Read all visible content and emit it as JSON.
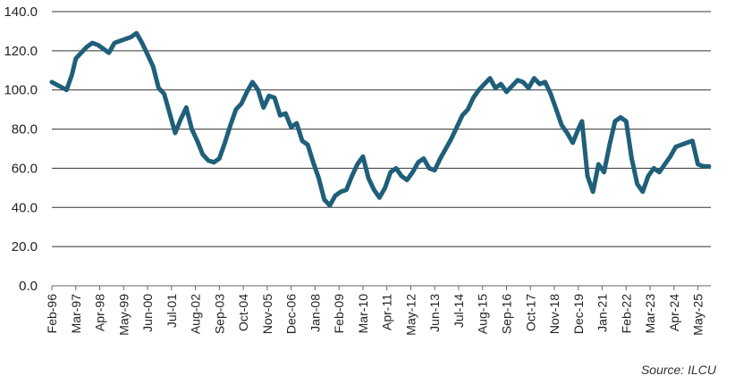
{
  "source_note": "Source: ILCU",
  "chart_data": {
    "type": "line",
    "title": "",
    "xlabel": "",
    "ylabel": "",
    "ylim": [
      0,
      140
    ],
    "yticks": [
      "0.0",
      "20.0",
      "40.0",
      "60.0",
      "80.0",
      "100.0",
      "120.0",
      "140.0"
    ],
    "xticks": [
      "Feb-96",
      "Mar-97",
      "Apr-98",
      "May-99",
      "Jun-00",
      "Jul-01",
      "Aug-02",
      "Sep-03",
      "Oct-04",
      "Nov-05",
      "Dec-06",
      "Jan-08",
      "Feb-09",
      "Mar-10",
      "Apr-11",
      "May-12",
      "Jun-13",
      "Jul-14",
      "Aug-15",
      "Sep-16",
      "Oct-17",
      "Nov-18",
      "Dec-19",
      "Jan-21",
      "Feb-22",
      "Mar-23",
      "Apr-24",
      "May-25"
    ],
    "grid": "horizontal",
    "line_color": "#1f5f7a",
    "series": [
      {
        "x": [
          "1996-02",
          "1996-06",
          "1996-10",
          "1997-01",
          "1997-03",
          "1997-06",
          "1997-09",
          "1997-12",
          "1998-03",
          "1998-06",
          "1998-09",
          "1998-12",
          "1999-03",
          "1999-06",
          "1999-09",
          "1999-12",
          "2000-03",
          "2000-06",
          "2000-09",
          "2000-12",
          "2001-03",
          "2001-06",
          "2001-09",
          "2001-12",
          "2002-03",
          "2002-06",
          "2002-09",
          "2002-12",
          "2003-03",
          "2003-06",
          "2003-09",
          "2003-12",
          "2004-03",
          "2004-06",
          "2004-09",
          "2004-12",
          "2005-03",
          "2005-06",
          "2005-09",
          "2005-12",
          "2006-03",
          "2006-06",
          "2006-09",
          "2006-12",
          "2007-03",
          "2007-06",
          "2007-09",
          "2007-12",
          "2008-03",
          "2008-06",
          "2008-09",
          "2008-12",
          "2009-03",
          "2009-06",
          "2009-09",
          "2009-12",
          "2010-03",
          "2010-06",
          "2010-09",
          "2010-12",
          "2011-03",
          "2011-06",
          "2011-09",
          "2011-12",
          "2012-03",
          "2012-06",
          "2012-09",
          "2012-12",
          "2013-03",
          "2013-06",
          "2013-09",
          "2013-12",
          "2014-03",
          "2014-06",
          "2014-09",
          "2014-12",
          "2015-03",
          "2015-06",
          "2015-09",
          "2015-12",
          "2016-03",
          "2016-06",
          "2016-09",
          "2016-12",
          "2017-03",
          "2017-06",
          "2017-09",
          "2017-12",
          "2018-03",
          "2018-06",
          "2018-09",
          "2018-12",
          "2019-03",
          "2019-06",
          "2019-09",
          "2019-12",
          "2020-02",
          "2020-05",
          "2020-08",
          "2020-11",
          "2021-02",
          "2021-05",
          "2021-08",
          "2021-11",
          "2022-02",
          "2022-05",
          "2022-08",
          "2022-11",
          "2023-02",
          "2023-05",
          "2023-08",
          "2023-11",
          "2024-02",
          "2024-05",
          "2024-08",
          "2024-11",
          "2025-02",
          "2025-05",
          "2025-08",
          "2025-11"
        ],
        "values": [
          104,
          102,
          100,
          108,
          116,
          119,
          122,
          124,
          123,
          121,
          119,
          124,
          125,
          126,
          127,
          129,
          124,
          118,
          112,
          101,
          98,
          88,
          78,
          85,
          91,
          80,
          74,
          67,
          64,
          63,
          65,
          73,
          82,
          90,
          93,
          99,
          104,
          100,
          91,
          97,
          96,
          87,
          88,
          81,
          83,
          74,
          72,
          63,
          55,
          44,
          41,
          46,
          48,
          49,
          56,
          62,
          66,
          55,
          49,
          45,
          50,
          58,
          60,
          56,
          54,
          58,
          63,
          65,
          60,
          59,
          65,
          70,
          75,
          81,
          87,
          90,
          96,
          100,
          103,
          106,
          101,
          103,
          99,
          102,
          105,
          104,
          101,
          106,
          103,
          104,
          98,
          90,
          82,
          78,
          73,
          80,
          84,
          56,
          48,
          62,
          58,
          72,
          84,
          86,
          84,
          65,
          52,
          48,
          56,
          60,
          58,
          62,
          66,
          71,
          72,
          73,
          74,
          62,
          61,
          61
        ]
      }
    ]
  }
}
